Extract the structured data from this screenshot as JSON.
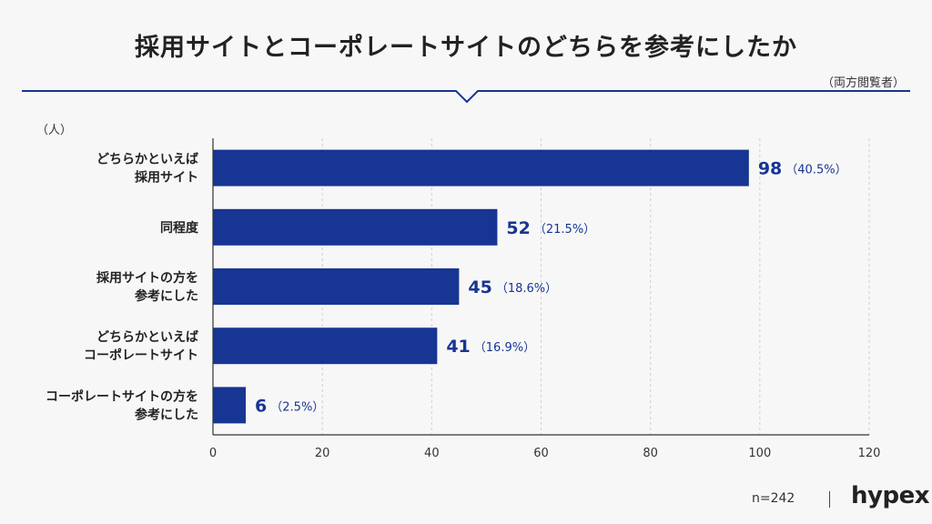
{
  "title": "採用サイトとコーポレートサイトのどちらを参考にしたか",
  "subtitle": "（両方閲覧者）",
  "footer": {
    "n": "n=242",
    "brand": "hypex"
  },
  "colors": {
    "bar": "#173592",
    "accent": "#173592",
    "grid": "#cfcfcf",
    "axis": "#333333"
  },
  "chart_data": {
    "type": "bar",
    "orientation": "horizontal",
    "ylabel": "（人）",
    "categories": [
      [
        "どちらかといえば",
        "採用サイト"
      ],
      [
        "同程度"
      ],
      [
        "採用サイトの方を",
        "参考にした"
      ],
      [
        "どちらかといえば",
        "コーポレートサイト"
      ],
      [
        "コーポレートサイトの方を",
        "参考にした"
      ]
    ],
    "values": [
      98,
      52,
      45,
      41,
      6
    ],
    "percent_labels": [
      "（40.5%）",
      "（21.5%）",
      "（18.6%）",
      "（16.9%）",
      "（2.5%）"
    ],
    "xlim": [
      0,
      120
    ],
    "xticks": [
      0,
      20,
      40,
      60,
      80,
      100,
      120
    ],
    "grid": true
  }
}
